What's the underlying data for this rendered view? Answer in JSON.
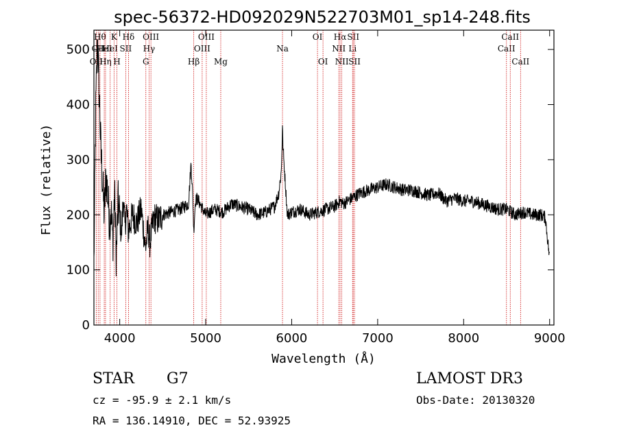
{
  "chart_data": {
    "type": "line",
    "title": "spec-56372-HD092029N522703M01_sp14-248.fits",
    "xlabel": "Wavelength (Å)",
    "ylabel": "Flux (relative)",
    "xlim": [
      3700,
      9050
    ],
    "ylim": [
      0,
      535
    ],
    "xticks": [
      4000,
      5000,
      6000,
      7000,
      8000,
      9000
    ],
    "yticks": [
      0,
      100,
      200,
      300,
      400,
      500
    ],
    "series": [
      {
        "x": [
          3700,
          3720,
          3740,
          3760,
          3780,
          3800,
          3820,
          3840,
          3860,
          3880,
          3900,
          3920,
          3940,
          3960,
          3980,
          4000,
          4020,
          4040,
          4060,
          4080,
          4100,
          4150,
          4200,
          4250,
          4300,
          4330,
          4350,
          4400,
          4450,
          4500,
          4600,
          4700,
          4800,
          4830,
          4850,
          4861,
          4880,
          4900,
          5000,
          5100,
          5200,
          5300,
          5400,
          5500,
          5600,
          5700,
          5800,
          5850,
          5880,
          5893,
          5900,
          5950,
          6000,
          6100,
          6200,
          6300,
          6400,
          6500,
          6563,
          6600,
          6700,
          6800,
          6900,
          7000,
          7100,
          7200,
          7300,
          7400,
          7500,
          7600,
          7700,
          7800,
          7900,
          8000,
          8100,
          8200,
          8300,
          8400,
          8500,
          8600,
          8700,
          8800,
          8900,
          8950,
          9000
        ],
        "y": [
          110,
          380,
          520,
          430,
          320,
          260,
          200,
          270,
          240,
          190,
          210,
          150,
          240,
          120,
          220,
          200,
          160,
          230,
          180,
          210,
          170,
          200,
          185,
          210,
          140,
          175,
          150,
          195,
          190,
          200,
          205,
          210,
          220,
          295,
          230,
          170,
          225,
          230,
          200,
          210,
          205,
          220,
          215,
          210,
          200,
          205,
          215,
          240,
          280,
          360,
          320,
          200,
          205,
          210,
          200,
          205,
          210,
          215,
          225,
          220,
          230,
          240,
          245,
          250,
          255,
          250,
          245,
          245,
          240,
          235,
          240,
          225,
          230,
          225,
          225,
          220,
          215,
          210,
          210,
          200,
          205,
          200,
          200,
          195,
          120
        ]
      }
    ],
    "line_markers": [
      {
        "wavelength": 3727,
        "label": "OII",
        "row": 3
      },
      {
        "wavelength": 3750,
        "label": "OII",
        "row": 2
      },
      {
        "wavelength": 3771,
        "label": "Hθ",
        "row": 1
      },
      {
        "wavelength": 3820,
        "label": "HeI",
        "row": 2
      },
      {
        "wavelength": 3835,
        "label": "Hη",
        "row": 3
      },
      {
        "wavelength": 3889,
        "label": "HeI",
        "row": 2
      },
      {
        "wavelength": 3934,
        "label": "K",
        "row": 1
      },
      {
        "wavelength": 3968,
        "label": "H",
        "row": 3
      },
      {
        "wavelength": 4070,
        "label": "SII",
        "row": 2
      },
      {
        "wavelength": 4102,
        "label": "Hδ",
        "row": 1
      },
      {
        "wavelength": 4304,
        "label": "G",
        "row": 3
      },
      {
        "wavelength": 4341,
        "label": "Hγ",
        "row": 2
      },
      {
        "wavelength": 4363,
        "label": "OIII",
        "row": 1
      },
      {
        "wavelength": 4861,
        "label": "Hβ",
        "row": 3
      },
      {
        "wavelength": 4959,
        "label": "OIII",
        "row": 2
      },
      {
        "wavelength": 5007,
        "label": "OIII",
        "row": 1
      },
      {
        "wavelength": 5175,
        "label": "Mg",
        "row": 3
      },
      {
        "wavelength": 5893,
        "label": "Na",
        "row": 2
      },
      {
        "wavelength": 6300,
        "label": "OI",
        "row": 1
      },
      {
        "wavelength": 6364,
        "label": "OI",
        "row": 3
      },
      {
        "wavelength": 6548,
        "label": "NII",
        "row": 2
      },
      {
        "wavelength": 6563,
        "label": "Hα",
        "row": 1
      },
      {
        "wavelength": 6583,
        "label": "NII",
        "row": 3
      },
      {
        "wavelength": 6708,
        "label": "Li",
        "row": 2
      },
      {
        "wavelength": 6716,
        "label": "SII",
        "row": 1
      },
      {
        "wavelength": 6731,
        "label": "SII",
        "row": 3
      },
      {
        "wavelength": 8498,
        "label": "CaII",
        "row": 2
      },
      {
        "wavelength": 8542,
        "label": "CaII",
        "row": 1
      },
      {
        "wavelength": 8662,
        "label": "CaII",
        "row": 3
      }
    ],
    "colors": {
      "spectrum": "#000000",
      "markers": "#cc0000",
      "axes": "#000000"
    }
  },
  "info": {
    "object_class": "STAR",
    "subclass": "G7",
    "survey": "LAMOST DR3",
    "redshift_line": "cz = -95.9 ± 2.1 km/s",
    "obs_date": "Obs-Date: 20130320",
    "coords": "RA = 136.14910, DEC =  52.93925"
  }
}
